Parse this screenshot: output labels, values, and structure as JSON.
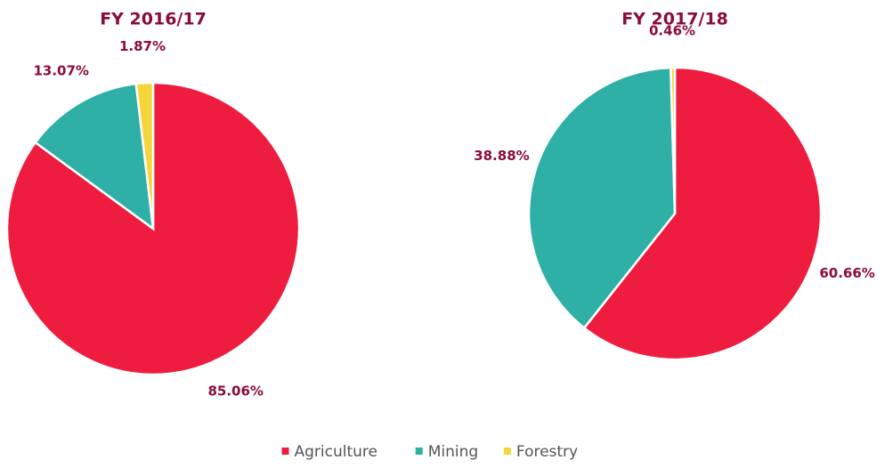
{
  "legend": {
    "names": [
      "Agriculture",
      "Mining",
      "Forestry"
    ],
    "colors": [
      "#ee1c3e",
      "#2fb0a6",
      "#f5d53c"
    ]
  },
  "chart_data": [
    {
      "type": "pie",
      "title": "FY 2016/17",
      "values": [
        85.06,
        13.07,
        1.87
      ],
      "value_labels": [
        "85.06%",
        "13.07%",
        "1.87%"
      ]
    },
    {
      "type": "pie",
      "title": "FY 2017/18",
      "values": [
        60.66,
        38.88,
        0.46
      ],
      "value_labels": [
        "60.66%",
        "38.88%",
        "0.46%"
      ]
    }
  ]
}
